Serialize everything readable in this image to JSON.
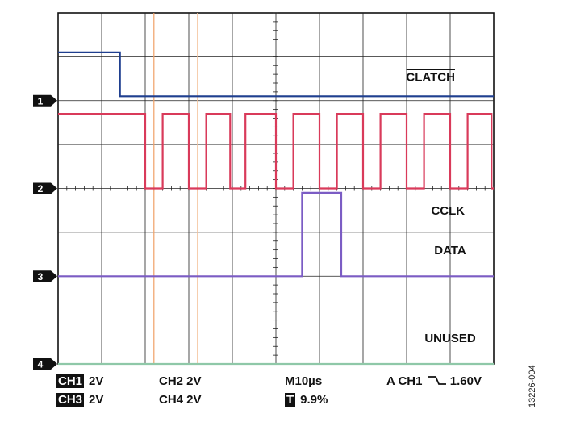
{
  "chart_data": {
    "type": "line",
    "title": "",
    "xlabel": "",
    "ylabel": "",
    "x_divisions": 10,
    "y_divisions": 8,
    "time_per_div": "10µs",
    "xlim": [
      0,
      10
    ],
    "ylim": [
      -4,
      4
    ],
    "grid": true,
    "cursors_x_div": [
      2.2,
      3.2
    ],
    "series": [
      {
        "name": "CLATCH",
        "channel": "1",
        "color": "#1f3f8f",
        "baseline_div": 2.0,
        "points": [
          [
            0,
            3.1
          ],
          [
            1.42,
            3.1
          ],
          [
            1.42,
            2.1
          ],
          [
            10,
            2.1
          ]
        ]
      },
      {
        "name": "CCLK",
        "channel": "2",
        "color": "#d93a5a",
        "baseline_div": 0.0,
        "high": 1.7,
        "low": 0.0,
        "points": [
          [
            0,
            1.7
          ],
          [
            2.0,
            1.7
          ],
          [
            2.0,
            0.0
          ],
          [
            2.4,
            0.0
          ],
          [
            2.4,
            1.7
          ],
          [
            3.0,
            1.7
          ],
          [
            3.0,
            0.0
          ],
          [
            3.4,
            0.0
          ],
          [
            3.4,
            1.7
          ],
          [
            3.95,
            1.7
          ],
          [
            3.95,
            0.0
          ],
          [
            4.3,
            0.0
          ],
          [
            4.3,
            1.7
          ],
          [
            5.0,
            1.7
          ],
          [
            5.0,
            0.0
          ],
          [
            5.4,
            0.0
          ],
          [
            5.4,
            1.7
          ],
          [
            6.0,
            1.7
          ],
          [
            6.0,
            0.0
          ],
          [
            6.4,
            0.0
          ],
          [
            6.4,
            1.7
          ],
          [
            7.0,
            1.7
          ],
          [
            7.0,
            0.0
          ],
          [
            7.4,
            0.0
          ],
          [
            7.4,
            1.7
          ],
          [
            8.0,
            1.7
          ],
          [
            8.0,
            0.0
          ],
          [
            8.4,
            0.0
          ],
          [
            8.4,
            1.7
          ],
          [
            9.0,
            1.7
          ],
          [
            9.0,
            0.0
          ],
          [
            9.4,
            0.0
          ],
          [
            9.4,
            1.7
          ],
          [
            9.95,
            1.7
          ],
          [
            9.95,
            0.0
          ],
          [
            10,
            0.0
          ]
        ]
      },
      {
        "name": "DATA",
        "channel": "3",
        "color": "#7b5cc4",
        "baseline_div": -2.0,
        "points": [
          [
            0,
            -2.0
          ],
          [
            5.6,
            -2.0
          ],
          [
            5.6,
            -0.1
          ],
          [
            6.5,
            -0.1
          ],
          [
            6.5,
            -2.0
          ],
          [
            10,
            -2.0
          ]
        ]
      },
      {
        "name": "UNUSED",
        "channel": "4",
        "color": "#8fc8a8",
        "baseline_div": -4.0,
        "points": [
          [
            0,
            -4.0
          ],
          [
            10,
            -4.0
          ]
        ]
      }
    ],
    "trace_labels": [
      {
        "text": "CLATCH",
        "overline": true,
        "x_div": 8.55,
        "y_div": 2.45
      },
      {
        "text": "CCLK",
        "overline": false,
        "x_div": 8.95,
        "y_div": -0.6
      },
      {
        "text": "DATA",
        "overline": false,
        "x_div": 9.0,
        "y_div": -1.5
      },
      {
        "text": "UNUSED",
        "overline": false,
        "x_div": 9.0,
        "y_div": -3.5
      }
    ]
  },
  "status": {
    "ch1_label": "CH1",
    "ch1_scale": "2V",
    "ch2": "CH2 2V",
    "timebase": "M10µs",
    "trigger_prefix": "A CH1",
    "trigger_level": "1.60V",
    "ch3_label": "CH3",
    "ch3_scale": "2V",
    "ch4": "CH4 2V",
    "trigger_pos_label": "T",
    "trigger_pos_value": "9.9%"
  },
  "figure_id": "13226-004"
}
